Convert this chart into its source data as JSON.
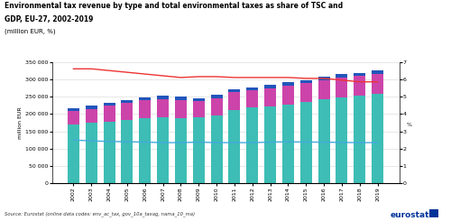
{
  "years": [
    2002,
    2003,
    2004,
    2005,
    2006,
    2007,
    2008,
    2009,
    2010,
    2011,
    2012,
    2013,
    2014,
    2015,
    2016,
    2017,
    2018,
    2019
  ],
  "energy": [
    170000,
    175000,
    178000,
    183000,
    187000,
    190000,
    188000,
    190000,
    196000,
    210000,
    218000,
    222000,
    228000,
    235000,
    242000,
    248000,
    252000,
    258000
  ],
  "transport": [
    38000,
    40000,
    45000,
    50000,
    52000,
    53000,
    53000,
    47000,
    50000,
    52000,
    50000,
    52000,
    54000,
    54000,
    56000,
    57000,
    57000,
    57000
  ],
  "pollution": [
    8000,
    8000,
    8000,
    8000,
    8000,
    9000,
    9000,
    8000,
    9000,
    9000,
    9000,
    9000,
    9000,
    9000,
    9000,
    9000,
    10000,
    10000
  ],
  "pct_tsc": [
    6.6,
    6.6,
    6.5,
    6.4,
    6.3,
    6.2,
    6.1,
    6.15,
    6.15,
    6.1,
    6.1,
    6.1,
    6.1,
    6.05,
    6.05,
    5.95,
    5.85,
    5.85
  ],
  "pct_gdp": [
    2.5,
    2.45,
    2.42,
    2.4,
    2.38,
    2.35,
    2.35,
    2.38,
    2.35,
    2.35,
    2.35,
    2.38,
    2.4,
    2.38,
    2.38,
    2.36,
    2.35,
    2.35
  ],
  "energy_color": "#3DBDB5",
  "transport_color": "#CC44AA",
  "pollution_color": "#2255BB",
  "tsc_color": "#EE3333",
  "gdp_color": "#44AADD",
  "ylim_left": [
    0,
    350000
  ],
  "ylim_right": [
    0,
    7
  ],
  "yticks_left": [
    0,
    50000,
    100000,
    150000,
    200000,
    250000,
    300000,
    350000
  ],
  "yticks_right": [
    0,
    1,
    2,
    3,
    4,
    5,
    6,
    7
  ],
  "title_line1": "Environmental tax revenue by type and total environmental taxes as share of TSC and",
  "title_line2": "GDP, EU-27, 2002-2019",
  "subtitle": "(million EUR, %)",
  "ylabel_left": "million EUR",
  "ylabel_right": "%",
  "source": "Source: Eurostat (online data codes: env_ac_tax, gov_10a_taxag, nama_10_ma)",
  "bg_color": "#FFFFFF",
  "grid_color": "#DDDDDD"
}
